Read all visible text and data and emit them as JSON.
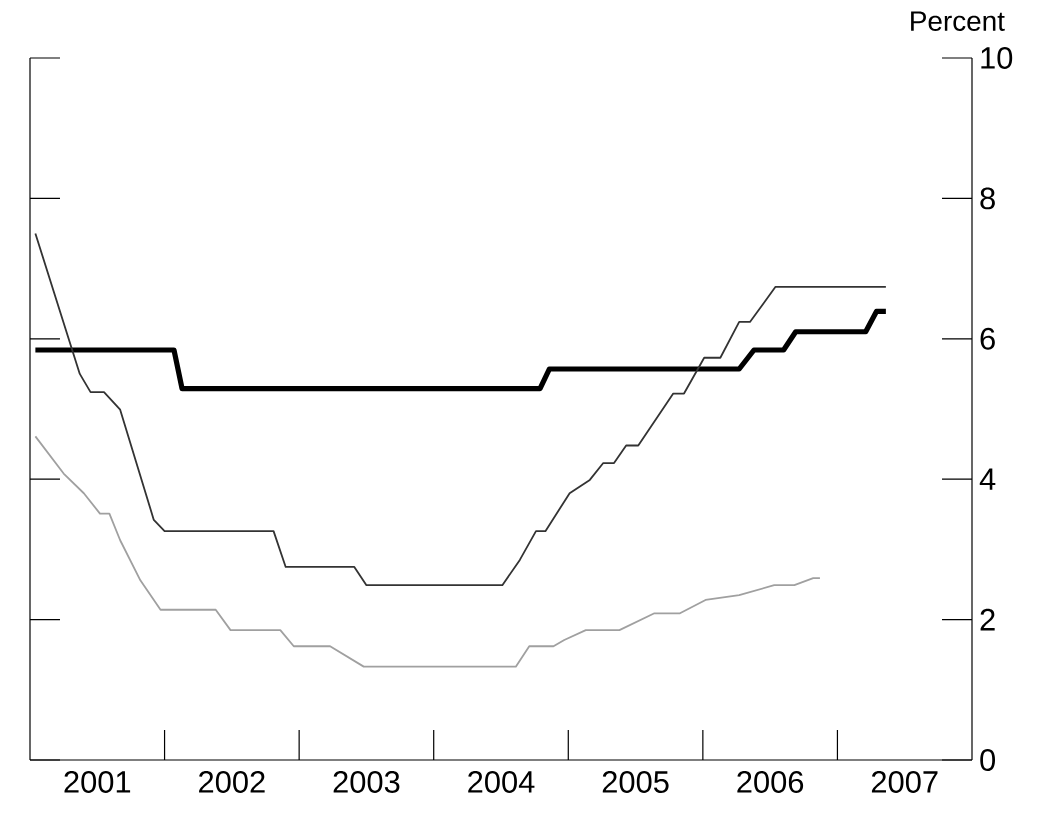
{
  "chart_data": {
    "type": "line",
    "ylabel": "Percent",
    "xlim": [
      2001,
      2008
    ],
    "xticks": [
      {
        "value": 2001.5,
        "label": "2001"
      },
      {
        "value": 2002,
        "label": null
      },
      {
        "value": 2002.5,
        "label": "2002"
      },
      {
        "value": 2003,
        "label": null
      },
      {
        "value": 2003.5,
        "label": "2003"
      },
      {
        "value": 2004,
        "label": null
      },
      {
        "value": 2004.5,
        "label": "2004"
      },
      {
        "value": 2005,
        "label": null
      },
      {
        "value": 2005.5,
        "label": "2005"
      },
      {
        "value": 2006,
        "label": null
      },
      {
        "value": 2006.5,
        "label": "2006"
      },
      {
        "value": 2007,
        "label": null
      },
      {
        "value": 2007.5,
        "label": "2007"
      }
    ],
    "ylim": [
      0,
      10
    ],
    "yticks": [
      0,
      2,
      4,
      6,
      8,
      10
    ],
    "grid": false,
    "marker": "none",
    "line_style": "solid",
    "series": [
      {
        "color": "#000000",
        "x": [
          2001.04,
          2002.07,
          2002.13,
          2004.79,
          2004.86,
          2006.27,
          2006.38,
          2006.6,
          2006.69,
          2007.21,
          2007.29,
          2007.36
        ],
        "values": [
          5.84,
          5.84,
          5.29,
          5.29,
          5.57,
          5.57,
          5.84,
          5.84,
          6.1,
          6.1,
          6.39,
          6.39
        ]
      },
      {
        "color": "#333333",
        "x": [
          2001.04,
          2001.37,
          2001.45,
          2001.55,
          2001.67,
          2001.92,
          2002.0,
          2002.81,
          2002.9,
          2003.41,
          2003.5,
          2004.51,
          2004.64,
          2004.76,
          2004.83,
          2005.01,
          2005.16,
          2005.26,
          2005.34,
          2005.43,
          2005.52,
          2005.78,
          2005.86,
          2006.01,
          2006.13,
          2006.27,
          2006.35,
          2006.54,
          2007.36
        ],
        "values": [
          7.5,
          5.5,
          5.24,
          5.24,
          4.99,
          3.42,
          3.26,
          3.26,
          2.75,
          2.75,
          2.49,
          2.49,
          2.85,
          3.26,
          3.26,
          3.8,
          3.99,
          4.23,
          4.23,
          4.48,
          4.48,
          5.22,
          5.22,
          5.73,
          5.73,
          6.24,
          6.24,
          6.74,
          6.74
        ]
      },
      {
        "color": "#a0a0a0",
        "x": [
          2001.04,
          2001.25,
          2001.4,
          2001.52,
          2001.59,
          2001.67,
          2001.82,
          2001.97,
          2002.38,
          2002.49,
          2002.86,
          2002.96,
          2003.23,
          2003.48,
          2004.61,
          2004.71,
          2004.89,
          2004.97,
          2005.13,
          2005.38,
          2005.64,
          2005.83,
          2006.02,
          2006.27,
          2006.53,
          2006.68,
          2006.82,
          2006.87
        ],
        "values": [
          4.61,
          4.08,
          3.8,
          3.51,
          3.51,
          3.13,
          2.56,
          2.14,
          2.14,
          1.85,
          1.85,
          1.62,
          1.62,
          1.33,
          1.33,
          1.62,
          1.62,
          1.71,
          1.85,
          1.85,
          2.09,
          2.09,
          2.28,
          2.35,
          2.49,
          2.49,
          2.59,
          2.59
        ]
      }
    ]
  }
}
